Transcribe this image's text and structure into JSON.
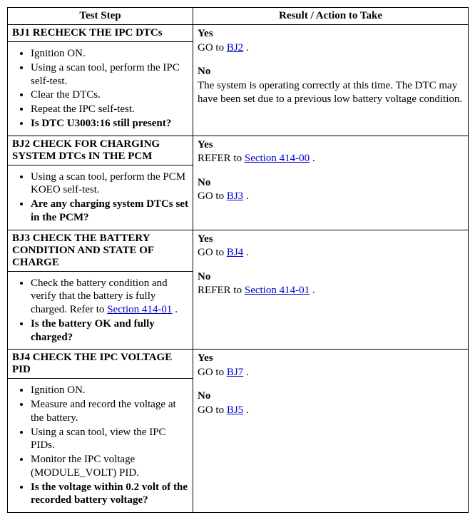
{
  "headers": {
    "left": "Test Step",
    "right": "Result / Action to Take"
  },
  "labels": {
    "yes": "Yes",
    "no": "No",
    "goto_prefix": "GO to ",
    "refer_prefix": "REFER to ",
    "period": " ."
  },
  "steps": [
    {
      "id": "BJ1",
      "title": "BJ1 RECHECK THE IPC DTCs",
      "items": [
        {
          "text": "Ignition ON.",
          "bold": false
        },
        {
          "text": "Using a scan tool, perform the IPC self-test.",
          "bold": false
        },
        {
          "text": "Clear the DTCs.",
          "bold": false
        },
        {
          "text": "Repeat the IPC self-test.",
          "bold": false
        },
        {
          "text": "Is DTC U3003:16 still present?",
          "bold": true
        }
      ],
      "yes": {
        "type": "goto",
        "link": "BJ2"
      },
      "no": {
        "type": "text",
        "text": "The system is operating correctly at this time. The DTC may have been set due to a previous low battery voltage condition."
      }
    },
    {
      "id": "BJ2",
      "title": "BJ2 CHECK FOR CHARGING SYSTEM DTCs IN THE PCM",
      "items": [
        {
          "text": "Using a scan tool, perform the PCM KOEO self-test.",
          "bold": false
        },
        {
          "text": "Are any charging system DTCs set in the PCM?",
          "bold": true
        }
      ],
      "yes": {
        "type": "refer",
        "link": "Section 414-00"
      },
      "no": {
        "type": "goto",
        "link": "BJ3"
      }
    },
    {
      "id": "BJ3",
      "title": "BJ3 CHECK THE BATTERY CONDITION AND STATE OF CHARGE",
      "items": [
        {
          "text_before": "Check the battery condition and verify that the battery is fully charged. Refer to ",
          "link": "Section 414-01",
          "text_after": " .",
          "bold": false,
          "has_link": true
        },
        {
          "text": "Is the battery OK and fully charged?",
          "bold": true
        }
      ],
      "yes": {
        "type": "goto",
        "link": "BJ4"
      },
      "no": {
        "type": "refer",
        "link": "Section 414-01"
      }
    },
    {
      "id": "BJ4",
      "title": "BJ4 CHECK THE IPC VOLTAGE PID",
      "items": [
        {
          "text": "Ignition ON.",
          "bold": false
        },
        {
          "text": "Measure and record the voltage at the battery.",
          "bold": false
        },
        {
          "text": "Using a scan tool, view the IPC PIDs.",
          "bold": false
        },
        {
          "text": "Monitor the IPC voltage (MODULE_VOLT) PID.",
          "bold": false
        },
        {
          "text": "Is the voltage within 0.2 volt of the recorded battery voltage?",
          "bold": true
        }
      ],
      "yes": {
        "type": "goto",
        "link": "BJ7"
      },
      "no": {
        "type": "goto",
        "link": "BJ5"
      }
    }
  ]
}
